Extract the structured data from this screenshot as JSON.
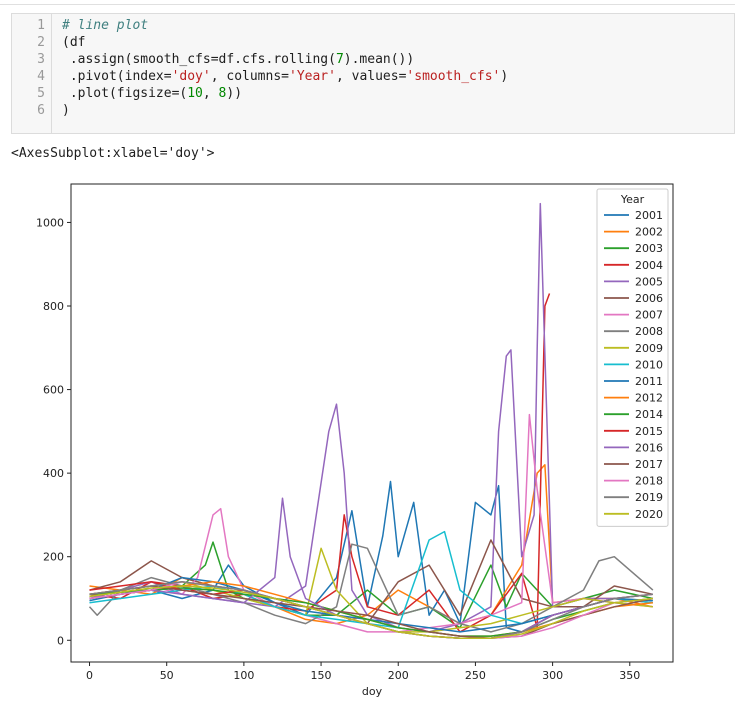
{
  "code_cell": {
    "line_numbers": [
      "1",
      "2",
      "3",
      "4",
      "5",
      "6"
    ],
    "lines": [
      [
        {
          "t": "# line plot",
          "c": "cm"
        }
      ],
      [
        {
          "t": "(df",
          "c": ""
        }
      ],
      [
        {
          "t": " .assign(smooth_cfs=df.cfs.rolling(",
          "c": ""
        },
        {
          "t": "7",
          "c": "nu"
        },
        {
          "t": ").mean())",
          "c": ""
        }
      ],
      [
        {
          "t": " .pivot(index=",
          "c": ""
        },
        {
          "t": "'doy'",
          "c": "st"
        },
        {
          "t": ", columns=",
          "c": ""
        },
        {
          "t": "'Year'",
          "c": "st"
        },
        {
          "t": ", values=",
          "c": ""
        },
        {
          "t": "'smooth_cfs'",
          "c": "st"
        },
        {
          "t": ")",
          "c": ""
        }
      ],
      [
        {
          "t": " .plot(figsize=(",
          "c": ""
        },
        {
          "t": "10",
          "c": "nu"
        },
        {
          "t": ", ",
          "c": ""
        },
        {
          "t": "8",
          "c": "nu"
        },
        {
          "t": "))",
          "c": ""
        }
      ],
      [
        {
          "t": ")",
          "c": ""
        }
      ]
    ]
  },
  "output_repr": "<AxesSubplot:xlabel='doy'>",
  "chart_data": {
    "type": "line",
    "xlabel": "doy",
    "ylabel": "",
    "xlim": [
      -12,
      378
    ],
    "ylim": [
      -52,
      1092
    ],
    "xticks": [
      0,
      50,
      100,
      150,
      200,
      250,
      300,
      350
    ],
    "yticks": [
      0,
      200,
      400,
      600,
      800,
      1000
    ],
    "grid": false,
    "legend": {
      "title": "Year",
      "placement": "top-right"
    },
    "series": [
      {
        "name": "2001",
        "color": "#1f77b4",
        "x": [
          0,
          20,
          40,
          60,
          80,
          90,
          100,
          120,
          140,
          160,
          170,
          180,
          190,
          195,
          200,
          210,
          220,
          230,
          240,
          250,
          260,
          265,
          270,
          280,
          300,
          320,
          340,
          365
        ],
        "y": [
          95,
          110,
          120,
          100,
          120,
          180,
          130,
          90,
          60,
          150,
          310,
          80,
          250,
          380,
          200,
          330,
          60,
          120,
          40,
          330,
          300,
          370,
          30,
          20,
          60,
          80,
          100,
          90
        ]
      },
      {
        "name": "2002",
        "color": "#ff7f0e",
        "x": [
          0,
          20,
          40,
          60,
          80,
          100,
          120,
          140,
          160,
          180,
          200,
          220,
          240,
          260,
          270,
          280,
          290,
          295,
          300,
          320,
          340,
          365
        ],
        "y": [
          130,
          120,
          110,
          150,
          130,
          120,
          80,
          50,
          40,
          60,
          120,
          80,
          40,
          60,
          120,
          180,
          400,
          420,
          90,
          100,
          100,
          80
        ]
      },
      {
        "name": "2003",
        "color": "#2ca02c",
        "x": [
          0,
          20,
          40,
          60,
          75,
          80,
          90,
          100,
          120,
          140,
          160,
          180,
          200,
          220,
          240,
          260,
          270,
          280,
          300,
          320,
          340,
          365
        ],
        "y": [
          105,
          115,
          120,
          130,
          180,
          235,
          120,
          100,
          80,
          60,
          60,
          120,
          60,
          80,
          30,
          180,
          80,
          160,
          80,
          100,
          120,
          100
        ]
      },
      {
        "name": "2004",
        "color": "#d62728",
        "x": [
          0,
          20,
          40,
          60,
          80,
          100,
          120,
          140,
          160,
          165,
          170,
          180,
          200,
          220,
          240,
          260,
          280,
          290,
          295,
          298
        ],
        "y": [
          110,
          100,
          140,
          130,
          100,
          110,
          80,
          70,
          120,
          300,
          200,
          80,
          60,
          120,
          20,
          60,
          160,
          30,
          800,
          830
        ]
      },
      {
        "name": "2005",
        "color": "#9467bd",
        "x": [
          0,
          20,
          40,
          60,
          80,
          100,
          120,
          140,
          155,
          160,
          165,
          170,
          180,
          200,
          220,
          240,
          260,
          265,
          270,
          273,
          280,
          288,
          290,
          292,
          300,
          320,
          340,
          365
        ],
        "y": [
          100,
          120,
          140,
          110,
          100,
          90,
          80,
          130,
          500,
          565,
          400,
          120,
          60,
          30,
          20,
          40,
          80,
          500,
          680,
          695,
          200,
          300,
          700,
          1045,
          80,
          100,
          100,
          90
        ]
      },
      {
        "name": "2006",
        "color": "#8c564b",
        "x": [
          0,
          20,
          40,
          60,
          80,
          100,
          120,
          140,
          160,
          180,
          200,
          220,
          240,
          260,
          280,
          300,
          320,
          340,
          365
        ],
        "y": [
          120,
          140,
          190,
          150,
          130,
          120,
          100,
          80,
          60,
          40,
          140,
          180,
          60,
          240,
          100,
          80,
          80,
          130,
          110
        ]
      },
      {
        "name": "2007",
        "color": "#e377c2",
        "x": [
          0,
          20,
          40,
          60,
          70,
          80,
          85,
          90,
          100,
          120,
          140,
          160,
          180,
          200,
          220,
          240,
          260,
          280,
          285,
          290,
          300,
          320,
          340,
          365
        ],
        "y": [
          110,
          120,
          130,
          110,
          150,
          300,
          315,
          200,
          120,
          80,
          60,
          40,
          20,
          20,
          30,
          40,
          60,
          90,
          540,
          360,
          90,
          100,
          90,
          80
        ]
      },
      {
        "name": "2008",
        "color": "#7f7f7f",
        "x": [
          0,
          5,
          20,
          40,
          60,
          80,
          100,
          120,
          140,
          160,
          170,
          180,
          200,
          220,
          240,
          260,
          280,
          300,
          320,
          330,
          340,
          365
        ],
        "y": [
          80,
          60,
          120,
          150,
          130,
          110,
          90,
          60,
          40,
          80,
          230,
          220,
          60,
          80,
          40,
          20,
          40,
          80,
          120,
          190,
          200,
          120
        ]
      },
      {
        "name": "2009",
        "color": "#bcbd22",
        "x": [
          0,
          20,
          40,
          60,
          80,
          100,
          120,
          140,
          150,
          160,
          180,
          200,
          220,
          240,
          260,
          280,
          300,
          320,
          340,
          365
        ],
        "y": [
          110,
          120,
          130,
          140,
          120,
          100,
          80,
          60,
          220,
          120,
          40,
          20,
          20,
          30,
          40,
          60,
          80,
          100,
          90,
          80
        ]
      },
      {
        "name": "2010",
        "color": "#17becf",
        "x": [
          0,
          20,
          40,
          60,
          80,
          100,
          120,
          140,
          160,
          180,
          200,
          220,
          230,
          240,
          260,
          280,
          300,
          320,
          340,
          365
        ],
        "y": [
          90,
          100,
          110,
          120,
          130,
          110,
          80,
          60,
          50,
          40,
          30,
          240,
          260,
          120,
          60,
          40,
          60,
          80,
          100,
          90
        ]
      },
      {
        "name": "2011",
        "color": "#1f77b4",
        "x": [
          0,
          20,
          40,
          60,
          80,
          100,
          120,
          140,
          160,
          180,
          200,
          220,
          240,
          260,
          280,
          300,
          320,
          340,
          365
        ],
        "y": [
          100,
          110,
          120,
          150,
          140,
          120,
          90,
          70,
          60,
          50,
          40,
          30,
          20,
          30,
          40,
          60,
          80,
          100,
          95
        ]
      },
      {
        "name": "2012",
        "color": "#ff7f0e",
        "x": [
          0,
          20,
          40,
          60,
          80,
          100,
          120,
          140,
          160,
          180,
          200,
          220,
          240,
          260,
          280,
          300,
          320,
          340,
          365
        ],
        "y": [
          100,
          110,
          120,
          130,
          140,
          130,
          110,
          90,
          70,
          50,
          30,
          20,
          10,
          10,
          20,
          40,
          60,
          80,
          90
        ]
      },
      {
        "name": "2014",
        "color": "#2ca02c",
        "x": [
          0,
          20,
          40,
          60,
          80,
          100,
          120,
          140,
          160,
          180,
          200,
          220,
          240,
          260,
          280,
          300,
          320,
          340,
          365
        ],
        "y": [
          110,
          115,
          120,
          125,
          120,
          110,
          100,
          90,
          70,
          50,
          30,
          20,
          10,
          10,
          20,
          50,
          70,
          90,
          100
        ]
      },
      {
        "name": "2015",
        "color": "#d62728",
        "x": [
          0,
          20,
          40,
          60,
          80,
          100,
          120,
          140,
          160,
          180,
          200,
          220,
          240,
          260,
          280,
          300,
          320,
          340,
          365
        ],
        "y": [
          120,
          130,
          140,
          120,
          110,
          120,
          100,
          80,
          60,
          40,
          20,
          10,
          5,
          5,
          20,
          60,
          80,
          100,
          110
        ]
      },
      {
        "name": "2016",
        "color": "#9467bd",
        "x": [
          0,
          20,
          40,
          60,
          80,
          100,
          120,
          125,
          130,
          140,
          160,
          180,
          200,
          220,
          240,
          260,
          280,
          300,
          320,
          340,
          365
        ],
        "y": [
          100,
          110,
          120,
          110,
          100,
          90,
          150,
          340,
          200,
          100,
          60,
          40,
          20,
          10,
          5,
          5,
          20,
          60,
          80,
          100,
          110
        ]
      },
      {
        "name": "2017",
        "color": "#8c564b",
        "x": [
          0,
          20,
          40,
          60,
          80,
          100,
          120,
          140,
          160,
          180,
          200,
          220,
          240,
          260,
          280,
          300,
          320,
          340,
          365
        ],
        "y": [
          110,
          120,
          130,
          120,
          110,
          100,
          90,
          80,
          70,
          60,
          40,
          20,
          10,
          5,
          10,
          40,
          60,
          80,
          100
        ]
      },
      {
        "name": "2018",
        "color": "#e377c2",
        "x": [
          0,
          20,
          40,
          60,
          80,
          100,
          120,
          140,
          160,
          180,
          200,
          220,
          240,
          260,
          280,
          300,
          320,
          340,
          365
        ],
        "y": [
          100,
          110,
          120,
          140,
          130,
          120,
          100,
          80,
          60,
          40,
          20,
          10,
          5,
          5,
          10,
          30,
          60,
          90,
          100
        ]
      },
      {
        "name": "2019",
        "color": "#7f7f7f",
        "x": [
          0,
          20,
          40,
          60,
          80,
          100,
          120,
          140,
          160,
          180,
          200,
          220,
          240,
          260,
          280,
          300,
          320,
          340,
          365
        ],
        "y": [
          110,
          120,
          130,
          140,
          130,
          120,
          100,
          80,
          60,
          40,
          20,
          10,
          5,
          5,
          20,
          50,
          80,
          100,
          110
        ]
      },
      {
        "name": "2020",
        "color": "#bcbd22",
        "x": [
          0,
          20,
          40,
          60,
          80,
          100,
          120,
          140,
          160,
          180,
          200,
          220,
          240,
          260,
          280,
          300,
          320,
          340,
          365
        ],
        "y": [
          105,
          115,
          125,
          130,
          125,
          115,
          100,
          80,
          60,
          40,
          20,
          10,
          5,
          5,
          15,
          40,
          70,
          90,
          100
        ]
      }
    ]
  }
}
